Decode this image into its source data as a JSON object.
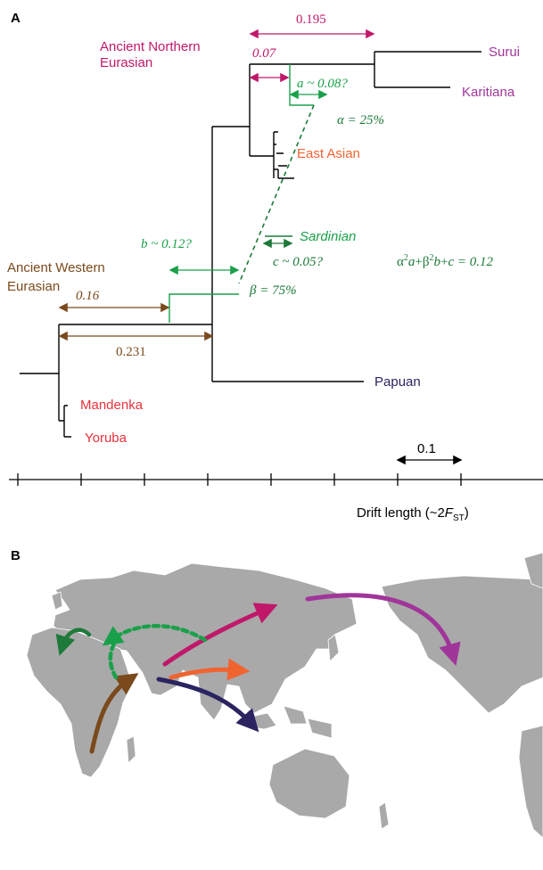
{
  "panels": {
    "a_label": "A",
    "b_label": "B"
  },
  "colors": {
    "tree": "#000000",
    "ancient_northern": "#c0186a",
    "admixture_green": "#1aa04a",
    "dark_green": "#1d7a3a",
    "ancient_western": "#7a4a1c",
    "mandenka_yoruba": "#e8313c",
    "east_asian": "#f06430",
    "surui_karitiana": "#a0359a",
    "papuan": "#2a2460",
    "map_land": "#a9a9a9",
    "map_border": "#ffffff"
  },
  "tree": {
    "populations": {
      "surui": "Surui",
      "karitiana": "Karitiana",
      "east_asian": "East Asian",
      "sardinian": "Sardinian",
      "papuan": "Papuan",
      "mandenka": "Mandenka",
      "yoruba": "Yoruba"
    },
    "groups": {
      "ancient_northern_line1": "Ancient Northern",
      "ancient_northern_line2": "Eurasian",
      "ancient_western_line1": "Ancient Western",
      "ancient_western_line2": "Eurasian"
    },
    "drift_values": {
      "v_0195": "0.195",
      "v_007": "0.07",
      "v_016": "0.16",
      "v_0231": "0.231",
      "a_est": "a ~ 0.08?",
      "b_est": "b ~ 0.12?",
      "c_est": "c ~ 0.05?"
    },
    "admixture": {
      "alpha": "α = 25%",
      "beta": "β = 75%",
      "equation_parts": {
        "alpha_sym": "α",
        "sup2": "2",
        "a": "a",
        "plus1": "+",
        "beta_sym": "β",
        "b": "b",
        "plus2": "+",
        "c": "c",
        "equals": " = 0.12"
      }
    },
    "scale": {
      "scale_bar_label": "0.1",
      "axis_label_main": "Drift length (~2",
      "axis_label_F": "F",
      "axis_label_sub": "ST",
      "axis_label_close": ")",
      "tick_count": 8
    }
  },
  "map": {
    "migration_arrows": [
      {
        "name": "africa-to-west-asia",
        "color": "brown"
      },
      {
        "name": "west-asia-to-north-eurasia",
        "color": "magenta"
      },
      {
        "name": "north-eurasia-to-americas",
        "color": "purple"
      },
      {
        "name": "west-asia-to-east-asia",
        "color": "orange"
      },
      {
        "name": "west-asia-to-oceania",
        "color": "navy"
      },
      {
        "name": "north-eurasia-to-europe",
        "color": "green-dashed"
      },
      {
        "name": "western-to-europe",
        "color": "dark-green"
      }
    ]
  }
}
